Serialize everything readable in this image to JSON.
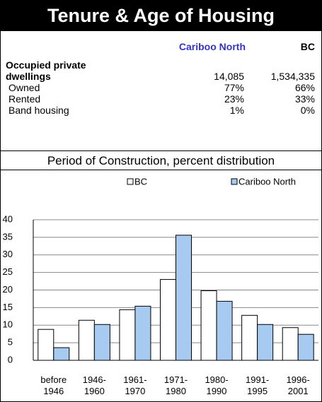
{
  "header": {
    "title": "Tenure & Age of Housing"
  },
  "table": {
    "columns": [
      "Cariboo North",
      "BC"
    ],
    "rows": [
      [
        "Occupied private\ndwellings",
        "14,085",
        "1,534,335"
      ],
      [
        "Owned",
        "77%",
        "66%"
      ],
      [
        "Rented",
        "23%",
        "33%"
      ],
      [
        "Band housing",
        "1%",
        "0%"
      ]
    ]
  },
  "chart_data": {
    "type": "bar",
    "title": "Period of Construction, percent distribution",
    "categories": [
      "before\n1946",
      "1946-\n1960",
      "1961-\n1970",
      "1971-\n1980",
      "1980-\n1990",
      "1991-\n1995",
      "1996-\n2001"
    ],
    "series": [
      {
        "name": "BC",
        "color": "#ffffff",
        "values": [
          8.8,
          11.4,
          14.4,
          23.0,
          19.8,
          12.8,
          9.3
        ]
      },
      {
        "name": "Cariboo North",
        "color": "#a6caf0",
        "values": [
          3.6,
          10.2,
          15.4,
          35.6,
          16.8,
          10.2,
          7.4
        ]
      }
    ],
    "ylim": [
      0,
      40
    ],
    "yticks": [
      0,
      5,
      10,
      15,
      20,
      25,
      30,
      35,
      40
    ],
    "grid": true,
    "legend": "top"
  }
}
